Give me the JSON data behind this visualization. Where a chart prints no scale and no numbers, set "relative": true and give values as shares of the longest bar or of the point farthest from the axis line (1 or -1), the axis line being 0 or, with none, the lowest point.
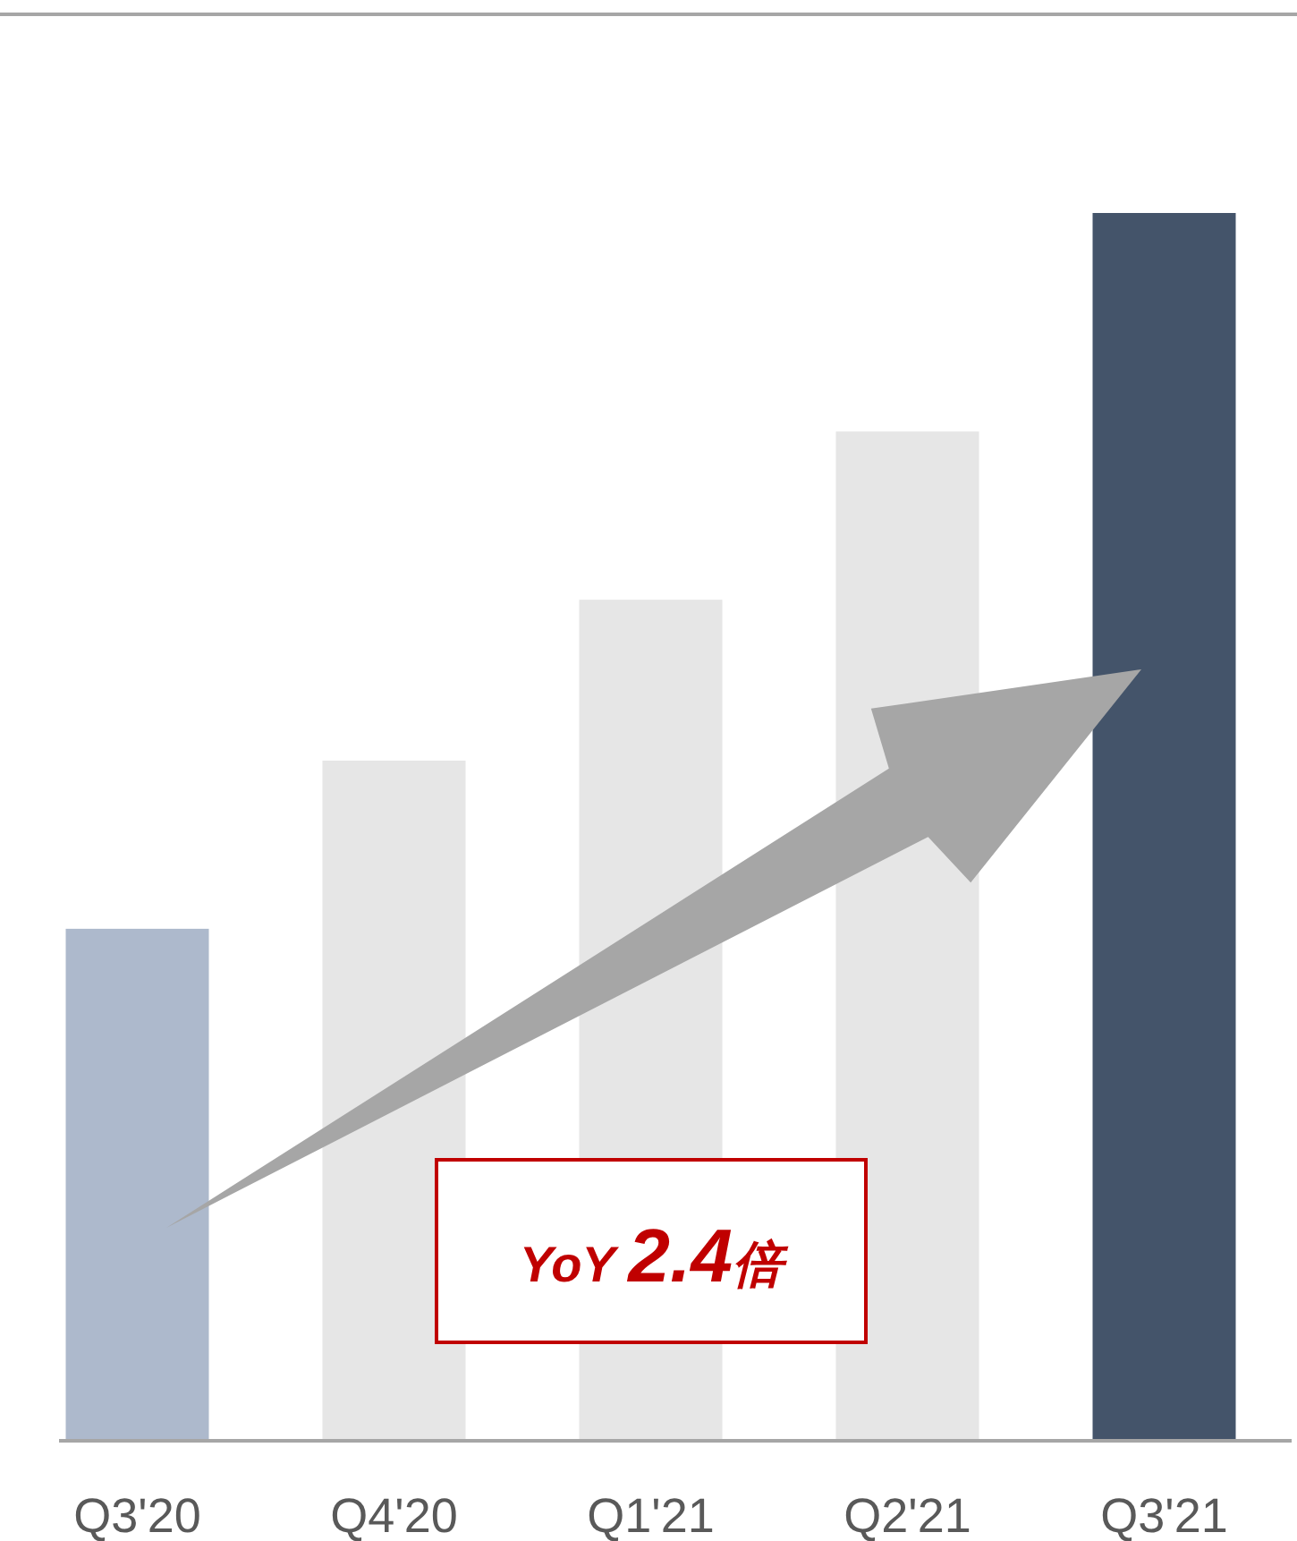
{
  "chart_data": {
    "type": "bar",
    "relative": true,
    "categories": [
      "Q3'20",
      "Q4'20",
      "Q1'21",
      "Q2'21",
      "Q3'21"
    ],
    "values": [
      0.417,
      0.554,
      0.685,
      0.822,
      1
    ],
    "colors": [
      "#adb9cc",
      "#e6e6e6",
      "#e6e6e6",
      "#e6e6e6",
      "#44546a"
    ],
    "annotations": [
      "YoY 2.4倍"
    ]
  }
}
